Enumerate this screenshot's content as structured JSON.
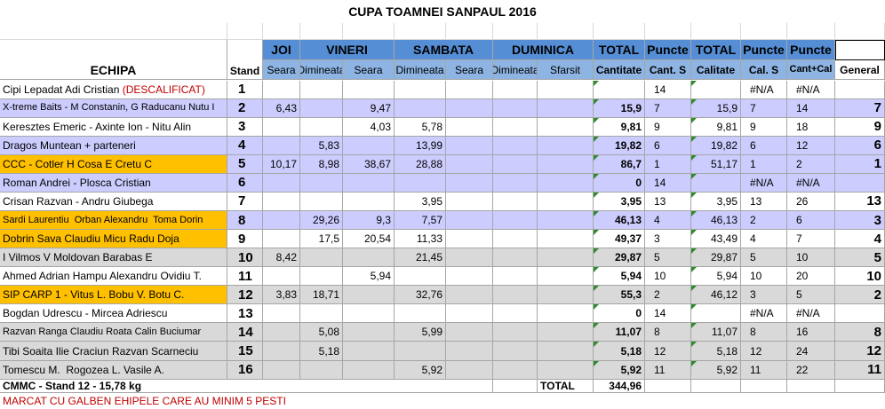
{
  "title": "CUPA TOAMNEI SANPAUL  2016",
  "header": {
    "team": "ECHIPA",
    "stand": "Stand",
    "groups": [
      "JOI",
      "VINERI",
      "SAMBATA",
      "DUMINICA",
      "TOTAL",
      "Puncte",
      "TOTAL",
      "Puncte",
      "Puncte"
    ],
    "columns": [
      "Seara",
      "Dimineata",
      "Seara",
      "Dimineata",
      "Seara",
      "Dimineata",
      "Sfarsit",
      "Cantitate",
      "Cant. S",
      "Calitate",
      "Cal. S",
      "Cant+Cal",
      "General"
    ]
  },
  "table": {
    "rows": [
      {
        "team": "Cipi Lepadat Adi Cristian ",
        "note": "(DESCALIFICAT)",
        "stand": "1",
        "values": [
          null,
          null,
          null,
          null,
          null,
          null,
          null,
          null,
          "14",
          null,
          "#N/A",
          "#N/A",
          null
        ]
      },
      {
        "team": "X-treme Baits - M Constanin, G Raducanu Nutu I",
        "stand": "2",
        "values": [
          "6,43",
          null,
          "9,47",
          null,
          null,
          null,
          null,
          "15,9",
          "7",
          "15,9",
          "7",
          "14",
          "7"
        ]
      },
      {
        "team": "Keresztes Emeric - Axinte Ion - Nitu Alin",
        "stand": "3",
        "values": [
          null,
          null,
          "4,03",
          "5,78",
          null,
          null,
          null,
          "9,81",
          "9",
          "9,81",
          "9",
          "18",
          "9"
        ]
      },
      {
        "team": "Dragos Muntean + parteneri",
        "stand": "4",
        "values": [
          null,
          "5,83",
          null,
          "13,99",
          null,
          null,
          null,
          "19,82",
          "6",
          "19,82",
          "6",
          "12",
          "6"
        ]
      },
      {
        "team": "CCC - Cotler H Cosa E Cretu C",
        "stand": "5",
        "values": [
          "10,17",
          "8,98",
          "38,67",
          "28,88",
          null,
          null,
          null,
          "86,7",
          "1",
          "51,17",
          "1",
          "2",
          "1"
        ]
      },
      {
        "team": "Roman Andrei - Plosca Cristian",
        "stand": "6",
        "values": [
          null,
          null,
          null,
          null,
          null,
          null,
          null,
          "0",
          "14",
          null,
          "#N/A",
          "#N/A",
          null
        ]
      },
      {
        "team": "Crisan Razvan - Andru Giubega",
        "stand": "7",
        "values": [
          null,
          null,
          null,
          "3,95",
          null,
          null,
          null,
          "3,95",
          "13",
          "3,95",
          "13",
          "26",
          "13"
        ]
      },
      {
        "team": "Sardi Laurentiu  Orban Alexandru  Toma Dorin",
        "stand": "8",
        "values": [
          null,
          "29,26",
          "9,3",
          "7,57",
          null,
          null,
          null,
          "46,13",
          "4",
          "46,13",
          "2",
          "6",
          "3"
        ]
      },
      {
        "team": "Dobrin Sava Claudiu Micu Radu Doja",
        "stand": "9",
        "values": [
          null,
          "17,5",
          "20,54",
          "11,33",
          null,
          null,
          null,
          "49,37",
          "3",
          "43,49",
          "4",
          "7",
          "4"
        ]
      },
      {
        "team": "I Vilmos V Moldovan Barabas E",
        "stand": "10",
        "values": [
          "8,42",
          null,
          null,
          "21,45",
          null,
          null,
          null,
          "29,87",
          "5",
          "29,87",
          "5",
          "10",
          "5"
        ]
      },
      {
        "team": "Ahmed Adrian Hampu Alexandru Ovidiu T.",
        "stand": "11",
        "values": [
          null,
          null,
          "5,94",
          null,
          null,
          null,
          null,
          "5,94",
          "10",
          "5,94",
          "10",
          "20",
          "10"
        ]
      },
      {
        "team": "SIP CARP 1 - Vitus L. Bobu V. Botu C.",
        "stand": "12",
        "values": [
          "3,83",
          "18,71",
          null,
          "32,76",
          null,
          null,
          null,
          "55,3",
          "2",
          "46,12",
          "3",
          "5",
          "2"
        ]
      },
      {
        "team": "Bogdan Udrescu - Mircea Adriescu",
        "stand": "13",
        "values": [
          null,
          null,
          null,
          null,
          null,
          null,
          null,
          "0",
          "14",
          null,
          "#N/A",
          "#N/A",
          null
        ]
      },
      {
        "team": "Razvan Ranga Claudiu Roata Calin Buciumar",
        "stand": "14",
        "values": [
          null,
          "5,08",
          null,
          "5,99",
          null,
          null,
          null,
          "11,07",
          "8",
          "11,07",
          "8",
          "16",
          "8"
        ]
      },
      {
        "team": "Tibi Soaita Ilie Craciun Razvan Scarneciu",
        "stand": "15",
        "values": [
          null,
          "5,18",
          null,
          null,
          null,
          null,
          null,
          "5,18",
          "12",
          "5,18",
          "12",
          "24",
          "12"
        ]
      },
      {
        "team": "Tomescu M.  Rogozea L. Vasile A.",
        "stand": "16",
        "values": [
          null,
          null,
          null,
          "5,92",
          null,
          null,
          null,
          "5,92",
          "11",
          "5,92",
          "11",
          "22",
          "11"
        ]
      }
    ]
  },
  "footer": {
    "record": "CMMC - Stand 12 - 15,78 kg",
    "total_label": "TOTAL",
    "total_value": "344,96",
    "note": "MARCAT CU GALBEN EHIPELE CARE AU MINIM 5 PESTI"
  }
}
